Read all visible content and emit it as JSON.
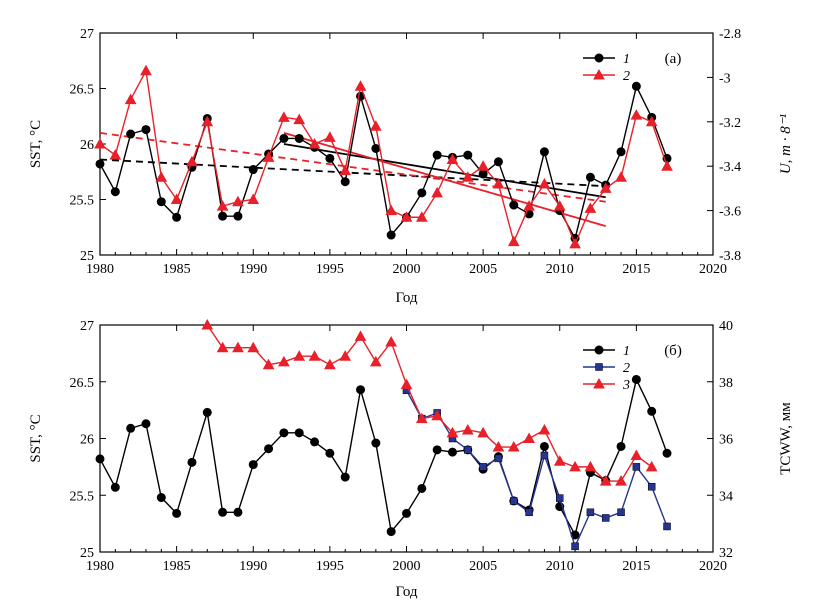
{
  "chart_data": [
    {
      "panel_label": "(a)",
      "type": "line",
      "xlabel": "Год",
      "ylabel_left": "SST, °C",
      "ylabel_right": "U, m · 8⁻¹",
      "xlim": [
        1980,
        2020
      ],
      "ylim_left": [
        25,
        27
      ],
      "ylim_right": [
        -3.8,
        -2.8
      ],
      "x_ticks": [
        "1980",
        "1985",
        "1990",
        "1995",
        "2000",
        "2005",
        "2010",
        "2015",
        "2020"
      ],
      "y_ticks_left": [
        "25",
        "25.5",
        "26",
        "26.5",
        "27"
      ],
      "y_ticks_right": [
        "-3.8",
        "-3.6",
        "-3.4",
        "-3.2",
        "-3",
        "-2.8"
      ],
      "legend_position": "top-right",
      "series": [
        {
          "name": "1",
          "axis": "left",
          "color": "#000000",
          "marker": "circle",
          "x": [
            1980,
            1981,
            1982,
            1983,
            1984,
            1985,
            1986,
            1987,
            1988,
            1989,
            1990,
            1991,
            1992,
            1993,
            1994,
            1995,
            1996,
            1997,
            1998,
            1999,
            2000,
            2001,
            2002,
            2003,
            2004,
            2005,
            2006,
            2007,
            2008,
            2009,
            2010,
            2011,
            2012,
            2013,
            2014,
            2015,
            2016,
            2017
          ],
          "values": [
            25.82,
            25.57,
            26.09,
            26.13,
            25.48,
            25.34,
            25.79,
            26.23,
            25.35,
            25.35,
            25.77,
            25.91,
            26.05,
            26.05,
            25.97,
            25.87,
            25.66,
            26.43,
            25.96,
            25.18,
            25.34,
            25.56,
            25.9,
            25.88,
            25.9,
            25.73,
            25.84,
            25.45,
            25.37,
            25.93,
            25.4,
            25.15,
            25.7,
            25.63,
            25.93,
            26.52,
            26.24,
            25.87
          ]
        },
        {
          "name": "2",
          "axis": "right",
          "color": "#e8202a",
          "marker": "triangle",
          "x": [
            1980,
            1981,
            1982,
            1983,
            1984,
            1985,
            1986,
            1987,
            1988,
            1989,
            1990,
            1991,
            1992,
            1993,
            1994,
            1995,
            1996,
            1997,
            1998,
            1999,
            2000,
            2001,
            2002,
            2003,
            2004,
            2005,
            2006,
            2007,
            2008,
            2009,
            2010,
            2011,
            2012,
            2013,
            2014,
            2015,
            2016,
            2017
          ],
          "values": [
            -3.3,
            -3.35,
            -3.1,
            -2.97,
            -3.45,
            -3.55,
            -3.38,
            -3.2,
            -3.58,
            -3.56,
            -3.55,
            -3.36,
            -3.18,
            -3.19,
            -3.3,
            -3.27,
            -3.42,
            -3.04,
            -3.22,
            -3.6,
            -3.63,
            -3.63,
            -3.52,
            -3.37,
            -3.45,
            -3.4,
            -3.48,
            -3.74,
            -3.58,
            -3.48,
            -3.58,
            -3.75,
            -3.59,
            -3.5,
            -3.45,
            -3.17,
            -3.2,
            -3.4
          ]
        }
      ],
      "trend_lines": [
        {
          "series": "1",
          "style": "dashed",
          "color": "#000000",
          "x": [
            1980,
            2013
          ],
          "values": [
            25.86,
            25.62
          ]
        },
        {
          "series": "2",
          "style": "dashed",
          "color": "#e8202a",
          "axis": "right",
          "x": [
            1980,
            2013
          ],
          "values": [
            -3.25,
            -3.56
          ]
        },
        {
          "series": "1",
          "style": "solid",
          "color": "#000000",
          "x": [
            1992,
            2013
          ],
          "values": [
            26.0,
            25.52
          ]
        },
        {
          "series": "2",
          "style": "solid",
          "color": "#e8202a",
          "axis": "right",
          "x": [
            1992,
            2013
          ],
          "values": [
            -3.25,
            -3.67
          ]
        }
      ]
    },
    {
      "panel_label": "(б)",
      "type": "line",
      "xlabel": "Год",
      "ylabel_left": "SST, °C",
      "ylabel_right": "TCWW, мм",
      "xlim": [
        1980,
        2020
      ],
      "ylim_left": [
        25,
        27
      ],
      "ylim_right": [
        32,
        40
      ],
      "x_ticks": [
        "1980",
        "1985",
        "1990",
        "1995",
        "2000",
        "2005",
        "2010",
        "2015",
        "2020"
      ],
      "y_ticks_left": [
        "25",
        "25.5",
        "26",
        "26.5",
        "27"
      ],
      "y_ticks_right": [
        "32",
        "34",
        "36",
        "38",
        "40"
      ],
      "legend_position": "top-right",
      "series": [
        {
          "name": "1",
          "axis": "left",
          "color": "#000000",
          "marker": "circle",
          "x": [
            1980,
            1981,
            1982,
            1983,
            1984,
            1985,
            1986,
            1987,
            1988,
            1989,
            1990,
            1991,
            1992,
            1993,
            1994,
            1995,
            1996,
            1997,
            1998,
            1999,
            2000,
            2001,
            2002,
            2003,
            2004,
            2005,
            2006,
            2007,
            2008,
            2009,
            2010,
            2011,
            2012,
            2013,
            2014,
            2015,
            2016,
            2017
          ],
          "values": [
            25.82,
            25.57,
            26.09,
            26.13,
            25.48,
            25.34,
            25.79,
            26.23,
            25.35,
            25.35,
            25.77,
            25.91,
            26.05,
            26.05,
            25.97,
            25.87,
            25.66,
            26.43,
            25.96,
            25.18,
            25.34,
            25.56,
            25.9,
            25.88,
            25.9,
            25.73,
            25.84,
            25.45,
            25.37,
            25.93,
            25.4,
            25.15,
            25.7,
            25.63,
            25.93,
            26.52,
            26.24,
            25.87
          ]
        },
        {
          "name": "2",
          "axis": "right",
          "color": "#26358f",
          "marker": "square",
          "x": [
            2000,
            2001,
            2002,
            2003,
            2004,
            2005,
            2006,
            2007,
            2008,
            2009,
            2010,
            2011,
            2012,
            2013,
            2014,
            2015,
            2016,
            2017
          ],
          "values": [
            37.7,
            36.7,
            36.9,
            36.0,
            35.6,
            35.0,
            35.3,
            33.8,
            33.4,
            35.4,
            33.9,
            32.2,
            33.4,
            33.2,
            33.4,
            35.0,
            34.3,
            32.9
          ]
        },
        {
          "name": "3",
          "axis": "right",
          "color": "#e8202a",
          "marker": "triangle",
          "x": [
            1987,
            1988,
            1989,
            1990,
            1991,
            1992,
            1993,
            1994,
            1995,
            1996,
            1997,
            1998,
            1999,
            2000,
            2001,
            2002,
            2003,
            2004,
            2005,
            2006,
            2007,
            2008,
            2009,
            2010,
            2011,
            2012,
            2013,
            2014,
            2015,
            2016,
            2017
          ],
          "values": [
            40.0,
            39.2,
            39.2,
            39.2,
            38.6,
            38.7,
            38.9,
            38.9,
            38.6,
            38.9,
            39.6,
            38.7,
            39.4,
            37.9,
            36.7,
            36.8,
            36.2,
            36.3,
            36.2,
            35.7,
            35.7,
            36.0,
            36.3,
            35.2,
            35.0,
            35.0,
            34.5,
            34.5,
            35.4,
            35.0,
            null
          ]
        }
      ]
    }
  ]
}
